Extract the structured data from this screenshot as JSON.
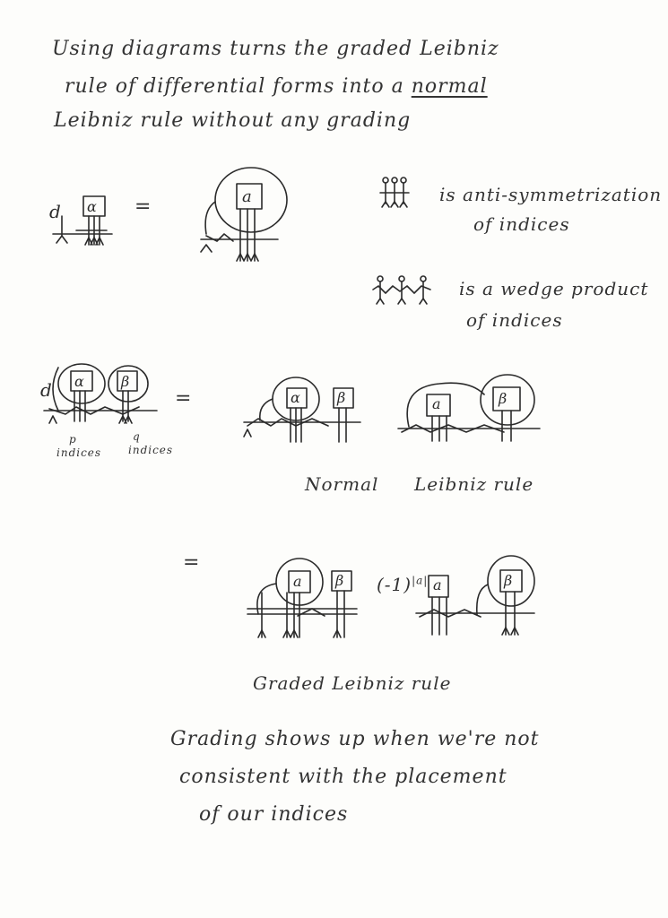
{
  "intro": {
    "line1": "Using diagrams turns the graded Leibniz",
    "line2_a": "rule of differential forms into a ",
    "line2_b": "normal",
    "line3": "Leibniz rule without any grading"
  },
  "symbols": {
    "d": "d",
    "alpha": "α",
    "beta": "β",
    "a": "a",
    "equals": "="
  },
  "legend": {
    "antisym_line1": "is anti-symmetrization",
    "antisym_line2": "of indices",
    "wedge_line1": "is a wedge product",
    "wedge_line2": "of indices"
  },
  "section2": {
    "p": "p",
    "p_label": "indices",
    "q": "q",
    "q_label": "indices",
    "normal": "Normal",
    "leibniz_rule": "Leibniz rule"
  },
  "section3": {
    "sign": "(-1)",
    "sign_exp": "|a|",
    "graded_caption": "Graded Leibniz rule"
  },
  "footer": {
    "line1": "Grading shows up when we're not",
    "line2": "consistent with the placement",
    "line3": "of our indices"
  }
}
